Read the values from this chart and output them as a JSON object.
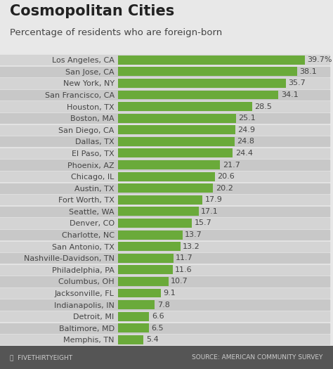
{
  "title": "Cosmopolitan Cities",
  "subtitle": "Percentage of residents who are foreign-born",
  "categories": [
    "Los Angeles, CA",
    "San Jose, CA",
    "New York, NY",
    "San Francisco, CA",
    "Houston, TX",
    "Boston, MA",
    "San Diego, CA",
    "Dallas, TX",
    "El Paso, TX",
    "Phoenix, AZ",
    "Chicago, IL",
    "Austin, TX",
    "Fort Worth, TX",
    "Seattle, WA",
    "Denver, CO",
    "Charlotte, NC",
    "San Antonio, TX",
    "Nashville-Davidson, TN",
    "Philadelphia, PA",
    "Columbus, OH",
    "Jacksonville, FL",
    "Indianapolis, IN",
    "Detroit, MI",
    "Baltimore, MD",
    "Memphis, TN"
  ],
  "values": [
    39.7,
    38.1,
    35.7,
    34.1,
    28.5,
    25.1,
    24.9,
    24.8,
    24.4,
    21.7,
    20.6,
    20.2,
    17.9,
    17.1,
    15.7,
    13.7,
    13.2,
    11.7,
    11.6,
    10.7,
    9.1,
    7.8,
    6.6,
    6.5,
    5.4
  ],
  "bar_color": "#6aaa3a",
  "row_bg_odd": "#d4d4d4",
  "row_bg_even": "#c8c8c8",
  "fig_bg_color": "#e8e8e8",
  "title_color": "#222222",
  "text_color": "#444444",
  "footer_bg": "#555555",
  "footer_text_color": "#cccccc",
  "footer_left": "⭘  FIVETHIRTYEIGHT",
  "footer_right": "SOURCE: AMERICAN COMMUNITY SURVEY",
  "xlim_max": 45,
  "title_fontsize": 15,
  "subtitle_fontsize": 9.5,
  "tick_fontsize": 8,
  "value_fontsize": 8,
  "footer_fontsize": 6.5
}
